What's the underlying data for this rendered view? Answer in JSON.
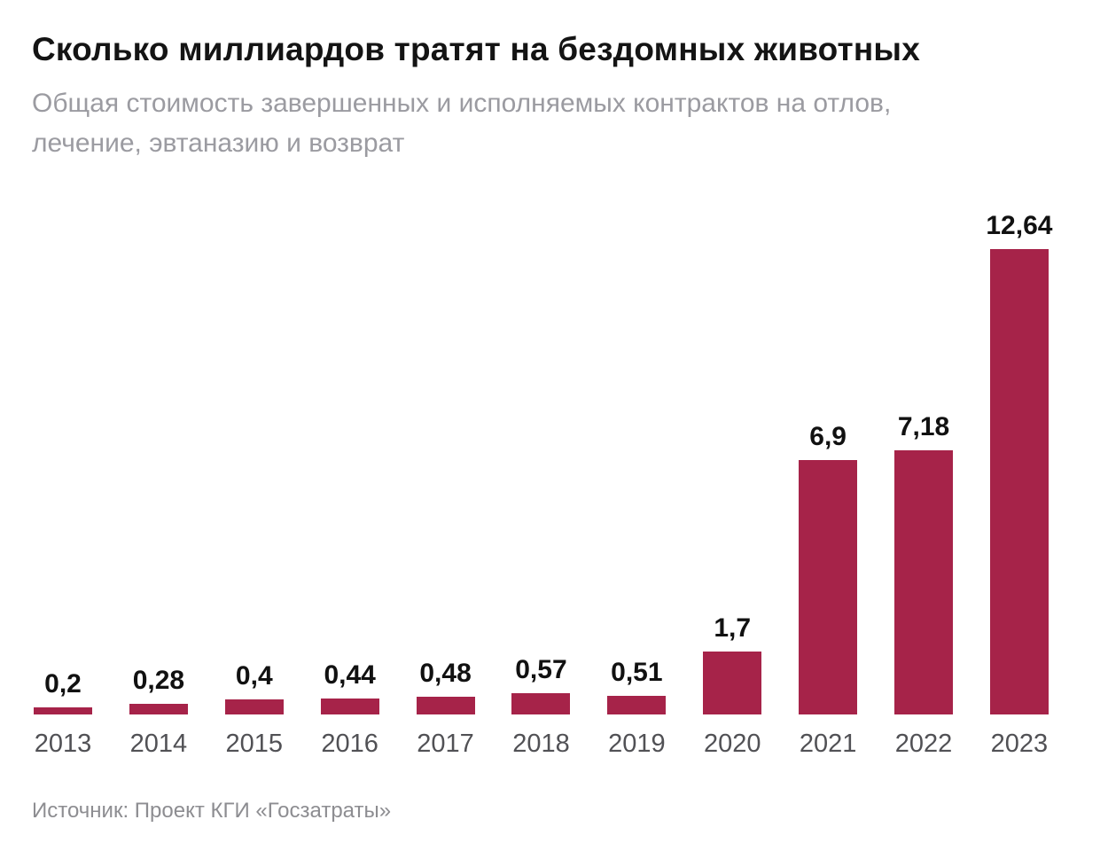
{
  "header": {
    "title": "Сколько миллиардов тратят на бездомных животных",
    "subtitle_line1": "Общая стоимость завершенных и исполняемых контрактов на отлов,",
    "subtitle_line2": "лечение, эвтаназию и возврат"
  },
  "chart_data": {
    "type": "bar",
    "title": "Сколько миллиардов тратят на бездомных животных",
    "subtitle": "Общая стоимость завершенных и исполняемых контрактов на отлов, лечение, эвтаназию и возврат",
    "categories": [
      "2013",
      "2014",
      "2015",
      "2016",
      "2017",
      "2018",
      "2019",
      "2020",
      "2021",
      "2022",
      "2023"
    ],
    "values": [
      0.2,
      0.28,
      0.4,
      0.44,
      0.48,
      0.57,
      0.51,
      1.7,
      6.9,
      7.18,
      12.64
    ],
    "value_labels": [
      "0,2",
      "0,28",
      "0,4",
      "0,44",
      "0,48",
      "0,57",
      "0,51",
      "1,7",
      "6,9",
      "7,18",
      "12,64"
    ],
    "xlabel": "",
    "ylabel": "",
    "ylim": [
      0,
      12.64
    ],
    "grid": false,
    "legend": "none",
    "bar_color": "#a62349",
    "value_label_color": "#111111",
    "axis_label_color": "#515155"
  },
  "footer": {
    "source": "Источник: Проект КГИ «Госзатраты»"
  }
}
